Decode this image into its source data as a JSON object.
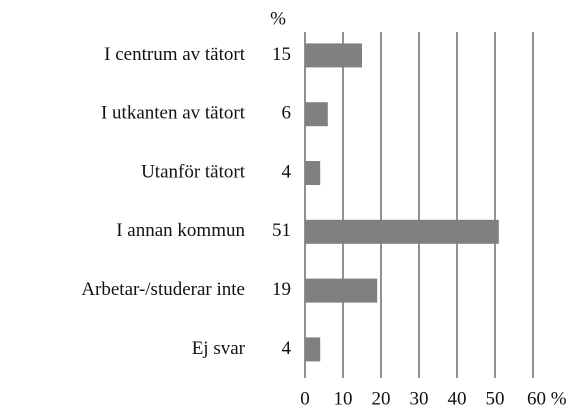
{
  "chart_data": {
    "type": "bar",
    "orientation": "horizontal",
    "value_unit": "%",
    "categories": [
      "I centrum av tätort",
      "I utkanten av tätort",
      "Utanför tätort",
      "I annan kommun",
      "Arbetar-/studerar inte",
      "Ej svar"
    ],
    "values": [
      15,
      6,
      4,
      51,
      19,
      4
    ],
    "color": "#808080",
    "xlim": [
      0,
      60
    ],
    "xticks": [
      0,
      10,
      20,
      30,
      40,
      50,
      {
        "value": 60,
        "label": "60 %"
      }
    ],
    "grid": true
  }
}
